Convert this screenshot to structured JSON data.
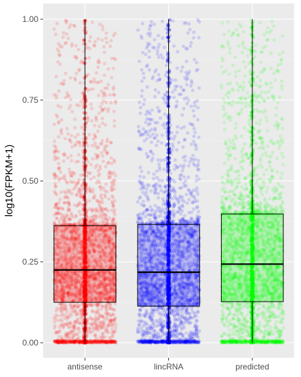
{
  "chart_data": {
    "type": "box_jitter",
    "title": "",
    "xlabel": "",
    "ylabel": "log10(FPKM+1)",
    "ylim": [
      0,
      1
    ],
    "y_ticks": [
      "0.00",
      "0.25",
      "0.50",
      "0.75",
      "1.00"
    ],
    "y_tick_values": [
      0,
      0.25,
      0.5,
      0.75,
      1.0
    ],
    "grid": true,
    "legend": "none",
    "background": "#ebebeb",
    "categories": [
      "antisense",
      "lincRNA",
      "predicted"
    ],
    "colors": [
      "#ff0000",
      "#0000ff",
      "#00ff00"
    ],
    "boxes": [
      {
        "category": "antisense",
        "q1": 0.125,
        "median": 0.225,
        "q3": 0.362,
        "whisker_low": 0.0,
        "whisker_high": 1.0
      },
      {
        "category": "lincRNA",
        "q1": 0.113,
        "median": 0.218,
        "q3": 0.366,
        "whisker_low": 0.0,
        "whisker_high": 1.0
      },
      {
        "category": "predicted",
        "q1": 0.127,
        "median": 0.243,
        "q3": 0.398,
        "whisker_low": 0.0,
        "whisker_high": 1.0
      }
    ]
  }
}
